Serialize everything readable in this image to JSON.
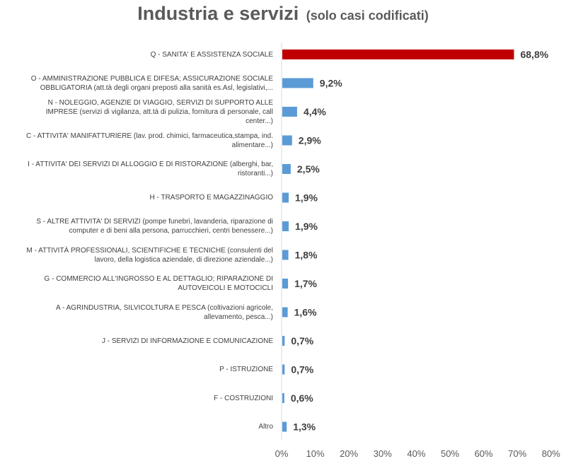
{
  "title": "Industria e servizi",
  "subtitle": "(solo casi codificati)",
  "colors": {
    "highlight": "#c00000",
    "bar": "#5b9bd5",
    "text": "#404040",
    "title": "#5a5a5a"
  },
  "chart_data": {
    "type": "bar",
    "orientation": "horizontal",
    "title": "Industria e servizi",
    "subtitle": "(solo casi codificati)",
    "categories": [
      "Q - SANITA' E ASSISTENZA SOCIALE",
      "O - AMMINISTRAZIONE PUBBLICA E DIFESA; ASSICURAZIONE SOCIALE OBBLIGATORIA (att.tà degli organi preposti alla sanità es.Asl, legislativi,...",
      "N - NOLEGGIO, AGENZIE DI VIAGGIO, SERVIZI DI SUPPORTO ALLE IMPRESE (servizi di vigilanza, att.tà di pulizia, fornitura di personale, call center...)",
      "C - ATTIVITA' MANIFATTURIERE (lav. prod. chimici, farmaceutica,stampa, ind. alimentare...)",
      "I - ATTIVITA' DEI SERVIZI DI ALLOGGIO E DI RISTORAZIONE (alberghi, bar, ristoranti...)",
      "H - TRASPORTO E MAGAZZINAGGIO",
      "S - ALTRE ATTIVITA' DI SERVIZI (pompe funebri, lavanderia, riparazione di computer e di beni alla persona, parrucchieri, centri benessere...)",
      "M - ATTIVITÀ PROFESSIONALI, SCIENTIFICHE E TECNICHE (consulenti del lavoro, della logistica aziendale, di direzione aziendale...)",
      "G - COMMERCIO ALL'INGROSSO E AL DETTAGLIO; RIPARAZIONE DI AUTOVEICOLI E MOTOCICLI",
      "A - AGRINDUSTRIA, SILVICOLTURA E PESCA (coltivazioni agricole, allevamento, pesca...)",
      "J - SERVIZI DI INFORMAZIONE E COMUNICAZIONE",
      "P - ISTRUZIONE",
      "F - COSTRUZIONI",
      "Altro"
    ],
    "values": [
      68.8,
      9.2,
      4.4,
      2.9,
      2.5,
      1.9,
      1.9,
      1.8,
      1.7,
      1.6,
      0.7,
      0.7,
      0.6,
      1.3
    ],
    "value_labels": [
      "68,8%",
      "9,2%",
      "4,4%",
      "2,9%",
      "2,5%",
      "1,9%",
      "1,9%",
      "1,8%",
      "1,7%",
      "1,6%",
      "0,7%",
      "0,7%",
      "0,6%",
      "1,3%"
    ],
    "highlight_index": 0,
    "xlim": [
      0,
      80
    ],
    "xticks": [
      "0%",
      "10%",
      "20%",
      "30%",
      "40%",
      "50%",
      "60%",
      "70%",
      "80%"
    ],
    "grid": false,
    "legend": "none"
  }
}
